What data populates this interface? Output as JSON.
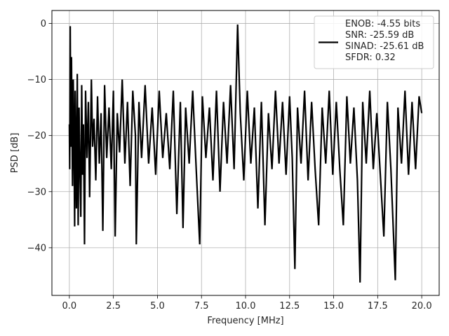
{
  "chart_data": {
    "type": "line",
    "title": "",
    "xlabel": "Frequency [MHz]",
    "ylabel": "PSD [dB]",
    "xlim": [
      -0.99,
      20.99
    ],
    "ylim": [
      -48.5,
      2.3
    ],
    "grid": true,
    "x_ticks": [
      0.0,
      2.5,
      5.0,
      7.5,
      10.0,
      12.5,
      15.0,
      17.5,
      20.0
    ],
    "x_tick_labels": [
      "0.0",
      "2.5",
      "5.0",
      "7.5",
      "10.0",
      "12.5",
      "15.0",
      "17.5",
      "20.0"
    ],
    "y_ticks": [
      0,
      -10,
      -20,
      -30,
      -40
    ],
    "y_tick_labels": [
      "0",
      "−10",
      "−20",
      "−30",
      "−40"
    ],
    "legend": {
      "placement": "top-right",
      "entries": [
        "ENOB: -4.55 bits",
        "SNR: -25.59 dB",
        "SINAD: -25.61 dB",
        "SFDR: 0.32"
      ]
    },
    "series_style": {
      "color": "#000000"
    },
    "series": [
      {
        "points": [
          [
            0.0,
            -18
          ],
          [
            0.02,
            -26
          ],
          [
            0.04,
            -8
          ],
          [
            0.05,
            -0.5
          ],
          [
            0.07,
            -14
          ],
          [
            0.09,
            -22
          ],
          [
            0.12,
            -6
          ],
          [
            0.15,
            -18
          ],
          [
            0.18,
            -29
          ],
          [
            0.22,
            -10
          ],
          [
            0.26,
            -20
          ],
          [
            0.3,
            -36.2
          ],
          [
            0.33,
            -12
          ],
          [
            0.37,
            -24
          ],
          [
            0.4,
            -33
          ],
          [
            0.45,
            -9
          ],
          [
            0.5,
            -36
          ],
          [
            0.55,
            -15
          ],
          [
            0.6,
            -26
          ],
          [
            0.65,
            -34.5
          ],
          [
            0.7,
            -11
          ],
          [
            0.75,
            -27
          ],
          [
            0.8,
            -18
          ],
          [
            0.86,
            -39.4
          ],
          [
            0.92,
            -12
          ],
          [
            1.0,
            -24
          ],
          [
            1.08,
            -14
          ],
          [
            1.15,
            -31
          ],
          [
            1.25,
            -10
          ],
          [
            1.32,
            -22
          ],
          [
            1.4,
            -17
          ],
          [
            1.5,
            -28
          ],
          [
            1.6,
            -13
          ],
          [
            1.7,
            -25
          ],
          [
            1.8,
            -16
          ],
          [
            1.9,
            -37
          ],
          [
            2.0,
            -11
          ],
          [
            2.12,
            -24
          ],
          [
            2.25,
            -15
          ],
          [
            2.38,
            -26
          ],
          [
            2.5,
            -12
          ],
          [
            2.6,
            -38
          ],
          [
            2.72,
            -16
          ],
          [
            2.85,
            -23
          ],
          [
            3.0,
            -10
          ],
          [
            3.15,
            -25
          ],
          [
            3.3,
            -14
          ],
          [
            3.45,
            -29
          ],
          [
            3.6,
            -12
          ],
          [
            3.75,
            -20
          ],
          [
            3.8,
            -39.4
          ],
          [
            3.95,
            -14
          ],
          [
            4.1,
            -24
          ],
          [
            4.3,
            -11
          ],
          [
            4.5,
            -25
          ],
          [
            4.7,
            -15
          ],
          [
            4.9,
            -27
          ],
          [
            5.1,
            -12
          ],
          [
            5.3,
            -24
          ],
          [
            5.5,
            -16
          ],
          [
            5.7,
            -26
          ],
          [
            5.9,
            -12
          ],
          [
            6.1,
            -34
          ],
          [
            6.3,
            -14
          ],
          [
            6.45,
            -36.5
          ],
          [
            6.6,
            -15
          ],
          [
            6.8,
            -25
          ],
          [
            7.0,
            -12
          ],
          [
            7.2,
            -26
          ],
          [
            7.4,
            -39.4
          ],
          [
            7.55,
            -13
          ],
          [
            7.75,
            -24
          ],
          [
            7.95,
            -15
          ],
          [
            8.15,
            -28
          ],
          [
            8.35,
            -12
          ],
          [
            8.55,
            -30
          ],
          [
            8.75,
            -14
          ],
          [
            8.95,
            -25
          ],
          [
            9.15,
            -11
          ],
          [
            9.35,
            -26
          ],
          [
            9.55,
            -0.2
          ],
          [
            9.7,
            -16
          ],
          [
            9.9,
            -28
          ],
          [
            10.1,
            -12
          ],
          [
            10.3,
            -25
          ],
          [
            10.5,
            -15
          ],
          [
            10.7,
            -33
          ],
          [
            10.9,
            -14
          ],
          [
            11.1,
            -36
          ],
          [
            11.3,
            -16
          ],
          [
            11.5,
            -26
          ],
          [
            11.7,
            -12
          ],
          [
            11.9,
            -25
          ],
          [
            12.1,
            -14
          ],
          [
            12.3,
            -27
          ],
          [
            12.5,
            -13
          ],
          [
            12.65,
            -24
          ],
          [
            12.8,
            -43.8
          ],
          [
            12.95,
            -15
          ],
          [
            13.15,
            -25
          ],
          [
            13.35,
            -12
          ],
          [
            13.55,
            -28
          ],
          [
            13.75,
            -14
          ],
          [
            13.95,
            -26
          ],
          [
            14.15,
            -36
          ],
          [
            14.35,
            -15
          ],
          [
            14.55,
            -25
          ],
          [
            14.75,
            -12
          ],
          [
            14.95,
            -27
          ],
          [
            15.15,
            -14
          ],
          [
            15.35,
            -26
          ],
          [
            15.55,
            -36
          ],
          [
            15.75,
            -13
          ],
          [
            15.95,
            -25
          ],
          [
            16.15,
            -15
          ],
          [
            16.35,
            -28
          ],
          [
            16.5,
            -46.2
          ],
          [
            16.65,
            -14
          ],
          [
            16.85,
            -25
          ],
          [
            17.05,
            -12
          ],
          [
            17.25,
            -26
          ],
          [
            17.45,
            -16
          ],
          [
            17.65,
            -27
          ],
          [
            17.85,
            -38
          ],
          [
            18.05,
            -14
          ],
          [
            18.25,
            -26
          ],
          [
            18.5,
            -45.8
          ],
          [
            18.65,
            -15
          ],
          [
            18.85,
            -25
          ],
          [
            19.05,
            -12
          ],
          [
            19.25,
            -27
          ],
          [
            19.45,
            -14
          ],
          [
            19.65,
            -26
          ],
          [
            19.85,
            -13
          ],
          [
            20.0,
            -16
          ]
        ]
      }
    ]
  }
}
